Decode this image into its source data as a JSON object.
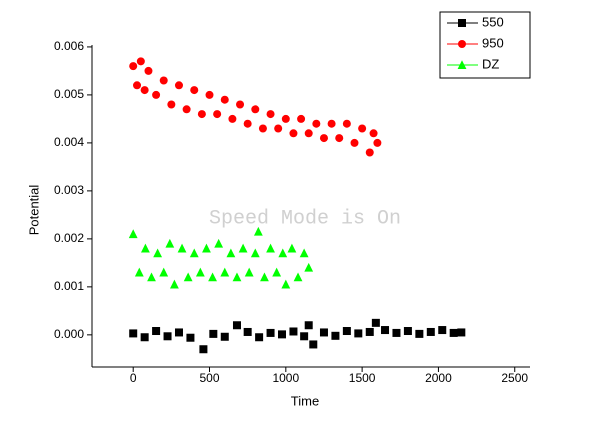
{
  "chart_data": {
    "type": "scatter",
    "x_label": "Time",
    "y_label": "Potential",
    "annotation": "Speed Mode is On",
    "xlim": [
      -270,
      2600
    ],
    "xticks": [
      0,
      500,
      1000,
      1500,
      2000,
      2500
    ],
    "ylim": [
      -0.00067,
      0.00604
    ],
    "yticks": [
      {
        "value": 0,
        "label": "0.000"
      },
      {
        "value": 0.001,
        "label": "0.001"
      },
      {
        "value": 0.002,
        "label": "0.002"
      },
      {
        "value": 0.003,
        "label": "0.003"
      },
      {
        "value": 0.004,
        "label": "0.004"
      },
      {
        "value": 0.005,
        "label": "0.005"
      },
      {
        "value": 0.006,
        "label": "0.006"
      }
    ],
    "legend": "top-right",
    "series": [
      {
        "name": "550",
        "color": "#000000",
        "marker": "square",
        "x": [
          0,
          75,
          150,
          225,
          300,
          375,
          460,
          525,
          600,
          680,
          750,
          825,
          900,
          975,
          1050,
          1120,
          1150,
          1180,
          1250,
          1325,
          1400,
          1475,
          1550,
          1590,
          1650,
          1725,
          1800,
          1875,
          1950,
          2025,
          2100,
          2150
        ],
        "values": [
          3e-05,
          -5e-05,
          8e-05,
          -3e-05,
          5e-05,
          -6e-05,
          -0.0003,
          2e-05,
          -4e-05,
          0.0002,
          6e-05,
          -5e-05,
          4e-05,
          1e-05,
          7e-05,
          -3e-05,
          0.0002,
          -0.0002,
          5e-05,
          -2e-05,
          8e-05,
          3e-05,
          6e-05,
          0.00025,
          0.0001,
          4e-05,
          8e-05,
          2e-05,
          6e-05,
          0.0001,
          4e-05,
          5e-05
        ]
      },
      {
        "name": "950",
        "color": "#ff0000",
        "marker": "circle",
        "x": [
          0,
          25,
          50,
          75,
          100,
          150,
          200,
          250,
          300,
          350,
          400,
          450,
          500,
          550,
          600,
          650,
          700,
          750,
          800,
          850,
          900,
          950,
          1000,
          1050,
          1100,
          1150,
          1200,
          1250,
          1300,
          1350,
          1400,
          1450,
          1500,
          1550,
          1575,
          1600
        ],
        "values": [
          0.0056,
          0.0052,
          0.0057,
          0.0051,
          0.0055,
          0.005,
          0.0053,
          0.0048,
          0.0052,
          0.0047,
          0.0051,
          0.0046,
          0.005,
          0.0046,
          0.0049,
          0.0045,
          0.0048,
          0.0044,
          0.0047,
          0.0043,
          0.0046,
          0.0043,
          0.0045,
          0.0042,
          0.0045,
          0.0042,
          0.0044,
          0.0041,
          0.0044,
          0.0041,
          0.0044,
          0.004,
          0.0043,
          0.0038,
          0.0042,
          0.004
        ]
      },
      {
        "name": "DZ",
        "color": "#00ff00",
        "marker": "triangle",
        "x": [
          0,
          40,
          80,
          120,
          160,
          200,
          240,
          270,
          320,
          360,
          400,
          440,
          480,
          520,
          560,
          600,
          640,
          680,
          720,
          760,
          800,
          820,
          860,
          900,
          940,
          980,
          1000,
          1040,
          1080,
          1120,
          1150
        ],
        "values": [
          0.0021,
          0.0013,
          0.0018,
          0.0012,
          0.0017,
          0.0013,
          0.0019,
          0.00105,
          0.0018,
          0.0012,
          0.0017,
          0.0013,
          0.0018,
          0.0012,
          0.0019,
          0.0013,
          0.0017,
          0.0012,
          0.0018,
          0.0013,
          0.0017,
          0.00215,
          0.0012,
          0.0018,
          0.0013,
          0.0017,
          0.00105,
          0.0018,
          0.0012,
          0.0017,
          0.0014
        ]
      }
    ]
  }
}
